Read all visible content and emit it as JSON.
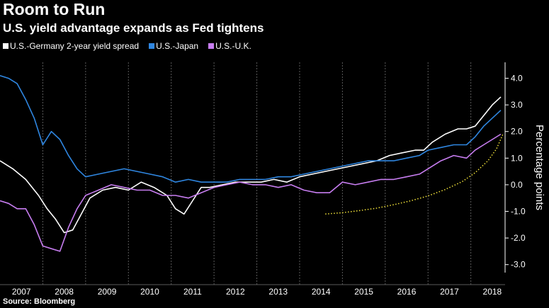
{
  "title": "Room to Run",
  "subtitle": "U.S. yield advantage expands as Fed tightens",
  "source": "Source: Bloomberg",
  "colors": {
    "background": "#000000",
    "gridline": "#5a5a5a",
    "text": "#ffffff",
    "germany": "#ffffff",
    "japan": "#2f86e0",
    "uk": "#c77df0",
    "annotation": "#f2e23a"
  },
  "chart_data": {
    "type": "line",
    "title": "Room to Run",
    "ylabel": "Percentage points",
    "ylim": [
      -3.3,
      4.6
    ],
    "xlim": [
      2007.0,
      2018.8
    ],
    "y_ticks": [
      4.0,
      3.0,
      2.0,
      1.0,
      0.0,
      -1.0,
      -2.0,
      -3.0
    ],
    "y_tick_labels": [
      "4.0",
      "3.0",
      "2.0",
      "1.0",
      "0.0",
      "-1.0",
      "-2.0",
      "-3.0"
    ],
    "x_tick_labels": [
      "2007",
      "2008",
      "2009",
      "2010",
      "2011",
      "2012",
      "2013",
      "2014",
      "2015",
      "2016",
      "2017",
      "2018"
    ],
    "grid": "vertical dotted",
    "legend_position": "top-left",
    "series": [
      {
        "name": "U.S.-Germany 2-year yield spread",
        "color": "#ffffff",
        "x": [
          2007.0,
          2007.3,
          2007.6,
          2007.9,
          2008.1,
          2008.3,
          2008.5,
          2008.7,
          2008.9,
          2009.1,
          2009.4,
          2009.7,
          2010.0,
          2010.3,
          2010.6,
          2010.9,
          2011.1,
          2011.3,
          2011.5,
          2011.7,
          2011.9,
          2012.2,
          2012.5,
          2012.8,
          2013.1,
          2013.4,
          2013.7,
          2014.0,
          2014.3,
          2014.6,
          2014.9,
          2015.2,
          2015.5,
          2015.8,
          2016.1,
          2016.4,
          2016.7,
          2016.9,
          2017.1,
          2017.4,
          2017.7,
          2017.9,
          2018.1,
          2018.3,
          2018.5,
          2018.7
        ],
        "y": [
          0.9,
          0.6,
          0.2,
          -0.4,
          -0.9,
          -1.3,
          -1.8,
          -1.7,
          -1.1,
          -0.5,
          -0.2,
          -0.1,
          -0.2,
          0.1,
          -0.1,
          -0.4,
          -0.9,
          -1.1,
          -0.6,
          -0.1,
          -0.1,
          0.0,
          0.1,
          0.1,
          0.1,
          0.2,
          0.1,
          0.3,
          0.4,
          0.5,
          0.6,
          0.7,
          0.8,
          0.9,
          1.1,
          1.2,
          1.3,
          1.3,
          1.6,
          1.9,
          2.1,
          2.1,
          2.2,
          2.6,
          3.0,
          3.3
        ]
      },
      {
        "name": "U.S.-Japan",
        "color": "#2f86e0",
        "x": [
          2007.0,
          2007.2,
          2007.4,
          2007.6,
          2007.8,
          2008.0,
          2008.2,
          2008.4,
          2008.6,
          2008.8,
          2009.0,
          2009.3,
          2009.6,
          2009.9,
          2010.2,
          2010.5,
          2010.8,
          2011.1,
          2011.4,
          2011.7,
          2012.0,
          2012.3,
          2012.6,
          2012.9,
          2013.2,
          2013.5,
          2013.8,
          2014.1,
          2014.4,
          2014.7,
          2015.0,
          2015.3,
          2015.6,
          2015.9,
          2016.2,
          2016.5,
          2016.8,
          2017.0,
          2017.3,
          2017.6,
          2017.9,
          2018.1,
          2018.3,
          2018.5,
          2018.7
        ],
        "y": [
          4.1,
          4.0,
          3.8,
          3.2,
          2.5,
          1.5,
          2.0,
          1.7,
          1.1,
          0.6,
          0.3,
          0.4,
          0.5,
          0.6,
          0.5,
          0.4,
          0.3,
          0.1,
          0.2,
          0.1,
          0.1,
          0.1,
          0.2,
          0.2,
          0.2,
          0.3,
          0.3,
          0.4,
          0.5,
          0.6,
          0.7,
          0.8,
          0.9,
          0.9,
          0.9,
          1.0,
          1.1,
          1.3,
          1.4,
          1.5,
          1.5,
          1.8,
          2.2,
          2.5,
          2.8
        ]
      },
      {
        "name": "U.S.-U.K.",
        "color": "#c77df0",
        "x": [
          2007.0,
          2007.2,
          2007.4,
          2007.6,
          2007.8,
          2008.0,
          2008.2,
          2008.4,
          2008.6,
          2008.8,
          2009.0,
          2009.3,
          2009.6,
          2009.9,
          2010.2,
          2010.5,
          2010.8,
          2011.1,
          2011.4,
          2011.7,
          2012.0,
          2012.3,
          2012.6,
          2012.9,
          2013.2,
          2013.5,
          2013.8,
          2014.1,
          2014.4,
          2014.7,
          2015.0,
          2015.3,
          2015.6,
          2015.9,
          2016.2,
          2016.5,
          2016.8,
          2017.0,
          2017.3,
          2017.6,
          2017.9,
          2018.1,
          2018.3,
          2018.5,
          2018.7
        ],
        "y": [
          -0.6,
          -0.7,
          -0.9,
          -0.9,
          -1.5,
          -2.3,
          -2.4,
          -2.5,
          -1.6,
          -0.9,
          -0.4,
          -0.2,
          0.0,
          -0.1,
          -0.2,
          -0.2,
          -0.4,
          -0.4,
          -0.5,
          -0.3,
          -0.1,
          0.0,
          0.1,
          0.0,
          0.0,
          -0.1,
          0.0,
          -0.2,
          -0.3,
          -0.3,
          0.1,
          0.0,
          0.1,
          0.2,
          0.2,
          0.3,
          0.4,
          0.6,
          0.9,
          1.1,
          1.0,
          1.3,
          1.5,
          1.7,
          1.9
        ]
      },
      {
        "name": "",
        "color": "#f2e23a",
        "style": "dotted",
        "x": [
          2014.6,
          2015.0,
          2015.4,
          2015.8,
          2016.2,
          2016.6,
          2017.0,
          2017.4,
          2017.8,
          2018.1,
          2018.4,
          2018.6,
          2018.75
        ],
        "y": [
          -1.1,
          -1.05,
          -0.97,
          -0.88,
          -0.75,
          -0.6,
          -0.42,
          -0.18,
          0.12,
          0.45,
          0.9,
          1.35,
          1.9
        ]
      }
    ]
  }
}
